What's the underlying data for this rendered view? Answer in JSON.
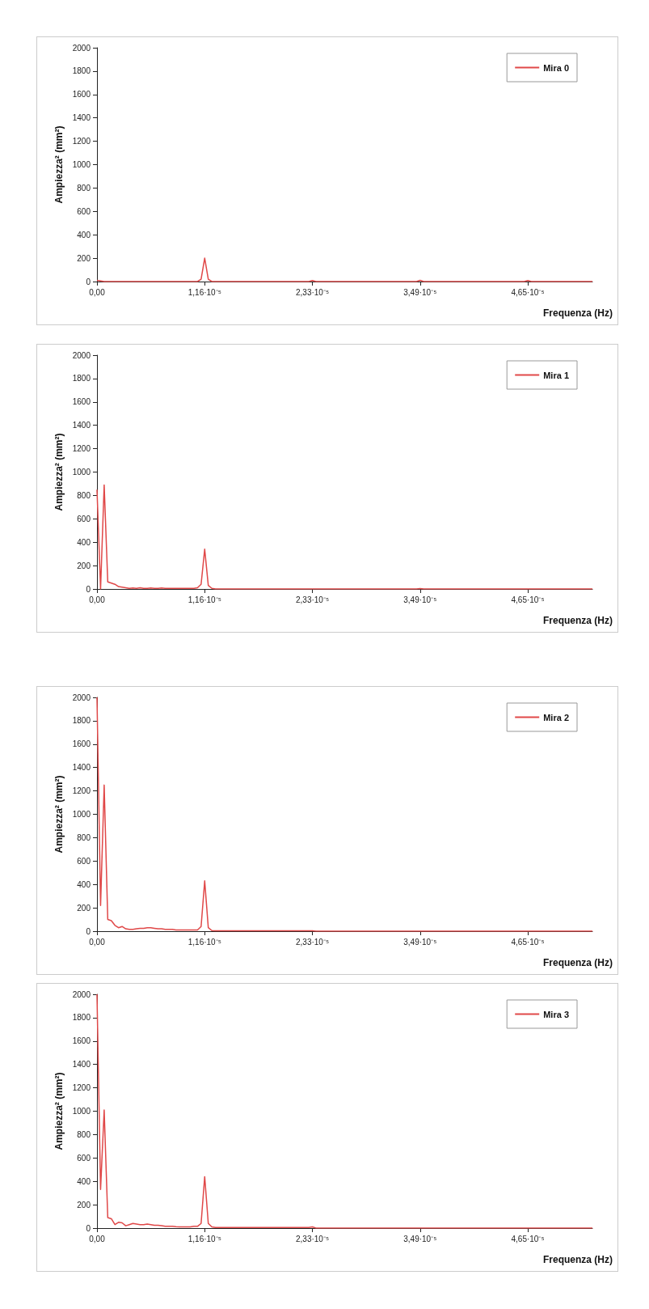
{
  "chart_data": [
    {
      "type": "line",
      "ylabel": "Ampiezza² (mm²)",
      "xlabel": "Frequenza (Hz)",
      "legend": "top right",
      "grid": false,
      "marker": "none",
      "ylim": [
        0,
        2000
      ],
      "yticks": [
        0,
        200,
        400,
        600,
        800,
        1000,
        1200,
        1400,
        1600,
        1800,
        2000
      ],
      "categories": [
        "0,00",
        null,
        null,
        null,
        null,
        null,
        null,
        null,
        null,
        null,
        null,
        null,
        null,
        null,
        null,
        null,
        null,
        null,
        null,
        null,
        null,
        null,
        null,
        null,
        null,
        null,
        null,
        null,
        null,
        null,
        "1,16·10⁻⁵",
        null,
        null,
        null,
        null,
        null,
        null,
        null,
        null,
        null,
        null,
        null,
        null,
        null,
        null,
        null,
        null,
        null,
        null,
        null,
        null,
        null,
        null,
        null,
        null,
        null,
        null,
        null,
        null,
        null,
        "2,33·10⁻⁵",
        null,
        null,
        null,
        null,
        null,
        null,
        null,
        null,
        null,
        null,
        null,
        null,
        null,
        null,
        null,
        null,
        null,
        null,
        null,
        null,
        null,
        null,
        null,
        null,
        null,
        null,
        null,
        null,
        null,
        "3,49·10⁻⁵",
        null,
        null,
        null,
        null,
        null,
        null,
        null,
        null,
        null,
        null,
        null,
        null,
        null,
        null,
        null,
        null,
        null,
        null,
        null,
        null,
        null,
        null,
        null,
        null,
        null,
        null,
        null,
        null,
        null,
        "4,65·10⁻⁵",
        null,
        null,
        null,
        null,
        null,
        null,
        null,
        null,
        null,
        null,
        null,
        null,
        null,
        null,
        null,
        null,
        null,
        null
      ],
      "series": [
        {
          "name": "Mira 0",
          "color": "#e04848",
          "values": [
            10,
            5,
            0,
            0,
            0,
            0,
            0,
            0,
            0,
            0,
            0,
            0,
            0,
            0,
            0,
            0,
            0,
            0,
            0,
            0,
            0,
            0,
            0,
            0,
            0,
            0,
            0,
            0,
            0,
            20,
            200,
            20,
            0,
            0,
            0,
            0,
            0,
            0,
            0,
            0,
            0,
            0,
            0,
            0,
            0,
            0,
            0,
            0,
            0,
            0,
            0,
            0,
            0,
            0,
            0,
            0,
            0,
            0,
            0,
            0,
            8,
            0,
            0,
            0,
            0,
            0,
            0,
            0,
            0,
            0,
            0,
            0,
            0,
            0,
            0,
            0,
            0,
            0,
            0,
            0,
            0,
            0,
            0,
            0,
            0,
            0,
            0,
            0,
            0,
            0,
            10,
            0,
            0,
            0,
            0,
            0,
            0,
            0,
            0,
            0,
            0,
            0,
            0,
            0,
            0,
            0,
            0,
            0,
            0,
            0,
            0,
            0,
            0,
            0,
            0,
            0,
            0,
            0,
            0,
            0,
            8,
            0,
            0,
            0,
            0,
            0,
            0,
            0,
            0,
            0,
            0,
            0,
            0,
            0,
            0,
            0,
            0,
            0,
            0
          ]
        }
      ]
    },
    {
      "type": "line",
      "ylabel": "Ampiezza² (mm²)",
      "xlabel": "Frequenza (Hz)",
      "legend": "top right",
      "grid": false,
      "marker": "none",
      "ylim": [
        0,
        2000
      ],
      "yticks": [
        0,
        200,
        400,
        600,
        800,
        1000,
        1200,
        1400,
        1600,
        1800,
        2000
      ],
      "categories": [
        "0,00",
        null,
        null,
        null,
        null,
        null,
        null,
        null,
        null,
        null,
        null,
        null,
        null,
        null,
        null,
        null,
        null,
        null,
        null,
        null,
        null,
        null,
        null,
        null,
        null,
        null,
        null,
        null,
        null,
        null,
        "1,16·10⁻⁵",
        null,
        null,
        null,
        null,
        null,
        null,
        null,
        null,
        null,
        null,
        null,
        null,
        null,
        null,
        null,
        null,
        null,
        null,
        null,
        null,
        null,
        null,
        null,
        null,
        null,
        null,
        null,
        null,
        null,
        "2,33·10⁻⁵",
        null,
        null,
        null,
        null,
        null,
        null,
        null,
        null,
        null,
        null,
        null,
        null,
        null,
        null,
        null,
        null,
        null,
        null,
        null,
        null,
        null,
        null,
        null,
        null,
        null,
        null,
        null,
        null,
        null,
        "3,49·10⁻⁵",
        null,
        null,
        null,
        null,
        null,
        null,
        null,
        null,
        null,
        null,
        null,
        null,
        null,
        null,
        null,
        null,
        null,
        null,
        null,
        null,
        null,
        null,
        null,
        null,
        null,
        null,
        null,
        null,
        null,
        "4,65·10⁻⁵",
        null,
        null,
        null,
        null,
        null,
        null,
        null,
        null,
        null,
        null,
        null,
        null,
        null,
        null,
        null,
        null,
        null,
        null
      ],
      "series": [
        {
          "name": "Mira 1",
          "color": "#e04848",
          "values": [
            850,
            0,
            890,
            60,
            50,
            40,
            20,
            15,
            10,
            5,
            8,
            5,
            10,
            5,
            5,
            8,
            5,
            5,
            8,
            5,
            5,
            5,
            5,
            5,
            5,
            5,
            5,
            5,
            10,
            40,
            340,
            30,
            5,
            0,
            0,
            0,
            0,
            0,
            0,
            0,
            0,
            0,
            0,
            0,
            0,
            0,
            0,
            0,
            0,
            0,
            0,
            0,
            0,
            0,
            0,
            0,
            0,
            0,
            0,
            0,
            0,
            0,
            0,
            0,
            0,
            0,
            0,
            0,
            0,
            0,
            0,
            0,
            0,
            0,
            0,
            0,
            0,
            0,
            0,
            0,
            0,
            0,
            0,
            0,
            0,
            0,
            0,
            0,
            0,
            0,
            3,
            0,
            0,
            0,
            0,
            0,
            0,
            0,
            0,
            0,
            0,
            0,
            0,
            0,
            0,
            0,
            0,
            0,
            0,
            0,
            0,
            0,
            0,
            0,
            0,
            0,
            0,
            0,
            0,
            0,
            0,
            0,
            0,
            0,
            0,
            0,
            0,
            0,
            0,
            0,
            0,
            0,
            0,
            0,
            0,
            0,
            0,
            0,
            0
          ]
        }
      ]
    },
    {
      "type": "line",
      "ylabel": "Ampiezza² (mm²)",
      "xlabel": "Frequenza (Hz)",
      "legend": "top right",
      "grid": false,
      "marker": "none",
      "ylim": [
        0,
        2000
      ],
      "yticks": [
        0,
        200,
        400,
        600,
        800,
        1000,
        1200,
        1400,
        1600,
        1800,
        2000
      ],
      "categories": [
        "0,00",
        null,
        null,
        null,
        null,
        null,
        null,
        null,
        null,
        null,
        null,
        null,
        null,
        null,
        null,
        null,
        null,
        null,
        null,
        null,
        null,
        null,
        null,
        null,
        null,
        null,
        null,
        null,
        null,
        null,
        "1,16·10⁻⁵",
        null,
        null,
        null,
        null,
        null,
        null,
        null,
        null,
        null,
        null,
        null,
        null,
        null,
        null,
        null,
        null,
        null,
        null,
        null,
        null,
        null,
        null,
        null,
        null,
        null,
        null,
        null,
        null,
        null,
        "2,33·10⁻⁵",
        null,
        null,
        null,
        null,
        null,
        null,
        null,
        null,
        null,
        null,
        null,
        null,
        null,
        null,
        null,
        null,
        null,
        null,
        null,
        null,
        null,
        null,
        null,
        null,
        null,
        null,
        null,
        null,
        null,
        "3,49·10⁻⁵",
        null,
        null,
        null,
        null,
        null,
        null,
        null,
        null,
        null,
        null,
        null,
        null,
        null,
        null,
        null,
        null,
        null,
        null,
        null,
        null,
        null,
        null,
        null,
        null,
        null,
        null,
        null,
        null,
        null,
        "4,65·10⁻⁵",
        null,
        null,
        null,
        null,
        null,
        null,
        null,
        null,
        null,
        null,
        null,
        null,
        null,
        null,
        null,
        null,
        null,
        null
      ],
      "series": [
        {
          "name": "Mira 2",
          "color": "#e04848",
          "values": [
            2000,
            220,
            1250,
            100,
            90,
            50,
            30,
            40,
            20,
            15,
            15,
            20,
            25,
            25,
            30,
            30,
            25,
            20,
            20,
            15,
            15,
            15,
            10,
            10,
            10,
            10,
            10,
            10,
            10,
            40,
            430,
            30,
            5,
            3,
            3,
            3,
            3,
            3,
            3,
            3,
            3,
            3,
            3,
            3,
            3,
            3,
            3,
            3,
            3,
            3,
            3,
            3,
            3,
            3,
            3,
            3,
            3,
            3,
            3,
            3,
            3,
            0,
            0,
            0,
            0,
            0,
            0,
            0,
            0,
            0,
            0,
            0,
            0,
            0,
            0,
            0,
            0,
            0,
            0,
            0,
            0,
            0,
            0,
            0,
            0,
            0,
            0,
            0,
            0,
            0,
            0,
            0,
            0,
            0,
            0,
            0,
            0,
            0,
            0,
            0,
            0,
            0,
            0,
            0,
            0,
            0,
            0,
            0,
            0,
            0,
            0,
            0,
            0,
            0,
            0,
            0,
            0,
            0,
            0,
            0,
            0,
            0,
            0,
            0,
            0,
            0,
            0,
            0,
            0,
            0,
            0,
            0,
            0,
            0,
            0,
            0,
            0,
            0,
            0
          ]
        }
      ]
    },
    {
      "type": "line",
      "ylabel": "Ampiezza² (mm²)",
      "xlabel": "Frequenza (Hz)",
      "legend": "top right",
      "grid": false,
      "marker": "none",
      "ylim": [
        0,
        2000
      ],
      "yticks": [
        0,
        200,
        400,
        600,
        800,
        1000,
        1200,
        1400,
        1600,
        1800,
        2000
      ],
      "categories": [
        "0,00",
        null,
        null,
        null,
        null,
        null,
        null,
        null,
        null,
        null,
        null,
        null,
        null,
        null,
        null,
        null,
        null,
        null,
        null,
        null,
        null,
        null,
        null,
        null,
        null,
        null,
        null,
        null,
        null,
        null,
        "1,16·10⁻⁵",
        null,
        null,
        null,
        null,
        null,
        null,
        null,
        null,
        null,
        null,
        null,
        null,
        null,
        null,
        null,
        null,
        null,
        null,
        null,
        null,
        null,
        null,
        null,
        null,
        null,
        null,
        null,
        null,
        null,
        "2,33·10⁻⁵",
        null,
        null,
        null,
        null,
        null,
        null,
        null,
        null,
        null,
        null,
        null,
        null,
        null,
        null,
        null,
        null,
        null,
        null,
        null,
        null,
        null,
        null,
        null,
        null,
        null,
        null,
        null,
        null,
        null,
        "3,49·10⁻⁵",
        null,
        null,
        null,
        null,
        null,
        null,
        null,
        null,
        null,
        null,
        null,
        null,
        null,
        null,
        null,
        null,
        null,
        null,
        null,
        null,
        null,
        null,
        null,
        null,
        null,
        null,
        null,
        null,
        null,
        "4,65·10⁻⁵",
        null,
        null,
        null,
        null,
        null,
        null,
        null,
        null,
        null,
        null,
        null,
        null,
        null,
        null,
        null,
        null,
        null,
        null
      ],
      "series": [
        {
          "name": "Mira 3",
          "color": "#e04848",
          "values": [
            2000,
            330,
            1010,
            90,
            80,
            30,
            50,
            45,
            20,
            30,
            40,
            35,
            30,
            30,
            35,
            30,
            25,
            25,
            20,
            15,
            15,
            15,
            12,
            10,
            10,
            10,
            10,
            15,
            15,
            40,
            440,
            40,
            10,
            5,
            5,
            5,
            5,
            5,
            5,
            5,
            5,
            5,
            5,
            5,
            5,
            5,
            5,
            5,
            5,
            5,
            5,
            5,
            5,
            5,
            5,
            5,
            5,
            5,
            5,
            5,
            10,
            0,
            0,
            0,
            0,
            0,
            0,
            0,
            0,
            0,
            0,
            0,
            0,
            0,
            0,
            0,
            0,
            0,
            0,
            0,
            0,
            0,
            0,
            0,
            0,
            0,
            0,
            0,
            0,
            0,
            0,
            0,
            0,
            0,
            0,
            0,
            0,
            0,
            0,
            0,
            0,
            0,
            0,
            0,
            0,
            0,
            0,
            0,
            0,
            0,
            0,
            0,
            0,
            0,
            0,
            0,
            0,
            0,
            0,
            0,
            0,
            0,
            0,
            0,
            0,
            0,
            0,
            0,
            0,
            0,
            0,
            0,
            0,
            0,
            0,
            0,
            0,
            0,
            0
          ]
        }
      ]
    }
  ]
}
